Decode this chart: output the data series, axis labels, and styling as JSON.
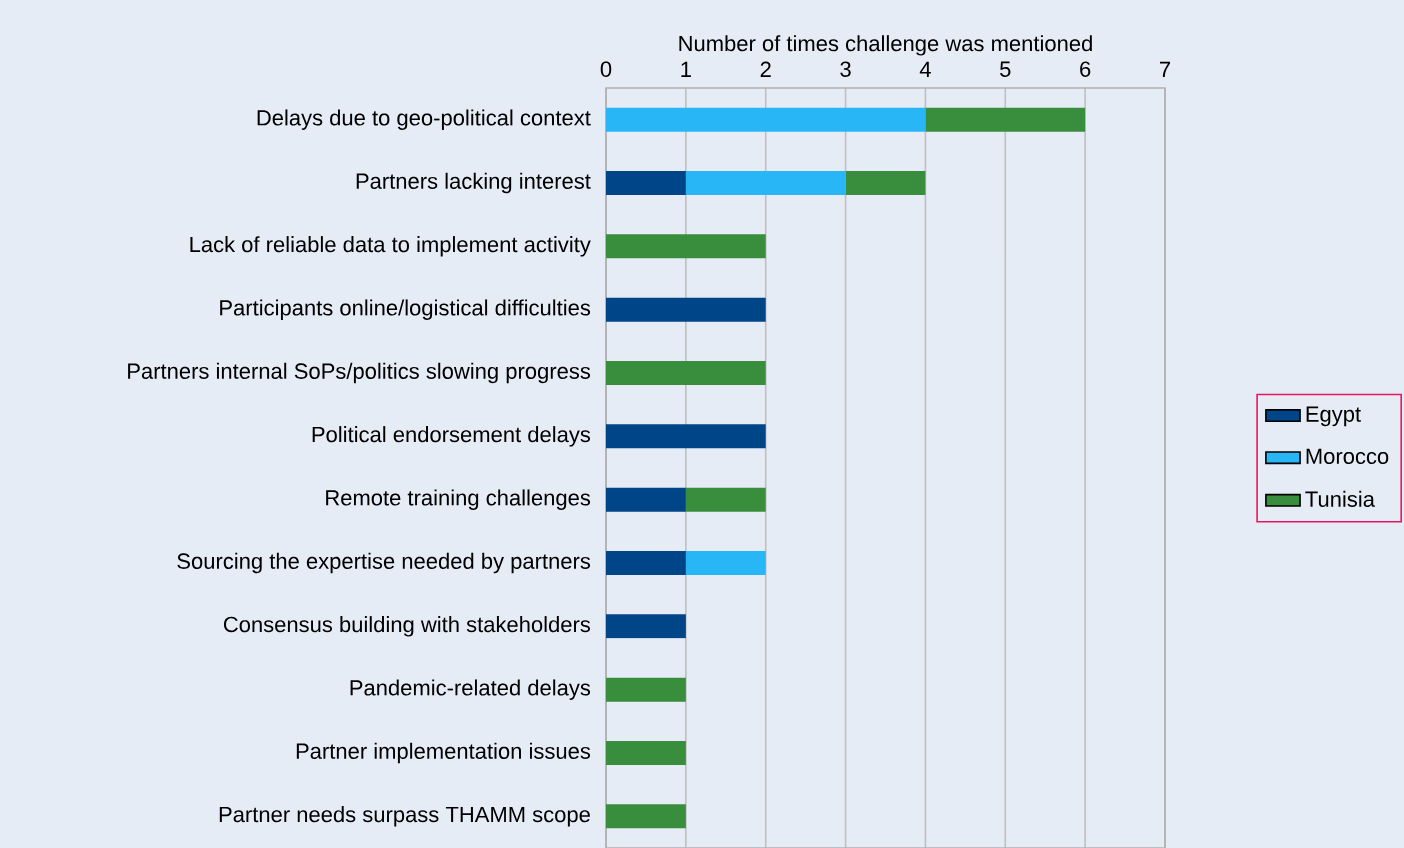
{
  "chart_data": {
    "type": "bar",
    "orientation": "horizontal",
    "stacked": true,
    "xlabel": "Number of times challenge was mentioned",
    "categories": [
      "Delays due to geo-political context",
      "Partners lacking interest",
      "Lack of reliable data to implement activity",
      "Participants online/logistical difficulties",
      "Partners internal SoPs/politics slowing progress",
      "Political endorsement delays",
      "Remote training challenges",
      "Sourcing the expertise needed by partners",
      "Consensus building with stakeholders",
      "Pandemic-related delays",
      "Partner implementation issues",
      "Partner needs surpass THAMM scope"
    ],
    "series": [
      {
        "name": "Egypt",
        "color": "#004587",
        "values": [
          0,
          1,
          0,
          2,
          0,
          2,
          1,
          1,
          1,
          0,
          0,
          0
        ]
      },
      {
        "name": "Morocco",
        "color": "#29b6f6",
        "values": [
          4,
          2,
          0,
          0,
          0,
          0,
          0,
          1,
          0,
          0,
          0,
          0
        ]
      },
      {
        "name": "Tunisia",
        "color": "#388e3c",
        "values": [
          2,
          1,
          2,
          0,
          2,
          0,
          1,
          0,
          0,
          1,
          1,
          1
        ]
      }
    ],
    "xlim": [
      0,
      7
    ],
    "xticks": [
      0,
      1,
      2,
      3,
      4,
      5,
      6,
      7
    ],
    "grid": "x",
    "legend": "right"
  }
}
